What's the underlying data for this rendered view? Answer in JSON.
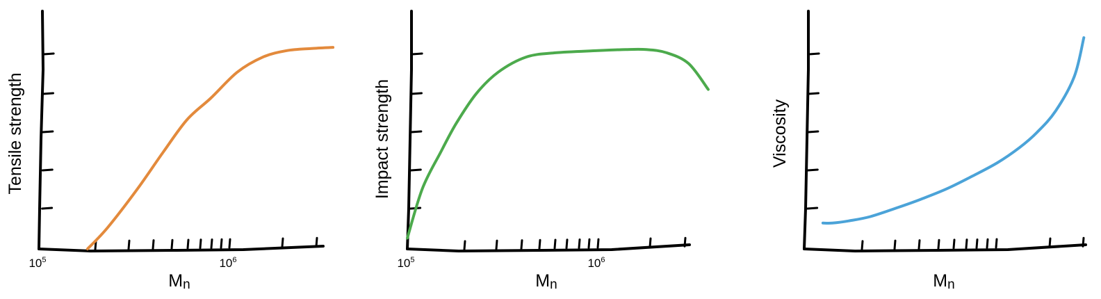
{
  "chart_data": [
    {
      "type": "line",
      "title": "",
      "xlabel": "Mn",
      "ylabel": "Tensile strength",
      "x_scale": "log",
      "xlim": [
        100000,
        3600000
      ],
      "x_tick_labels": [
        {
          "value": 100000,
          "base": "10",
          "exp": "5"
        },
        {
          "value": 1000000,
          "base": "10",
          "exp": "6"
        }
      ],
      "y_ticks": 5,
      "grid": false,
      "legend": "none",
      "series": [
        {
          "color": "#e38a3c",
          "x": [
            180000,
            230000,
            330000,
            450000,
            600000,
            800000,
            1100000,
            1500000,
            2000000,
            2700000,
            3500000
          ],
          "y": [
            0.0,
            0.1,
            0.28,
            0.45,
            0.6,
            0.7,
            0.82,
            0.89,
            0.92,
            0.93,
            0.935
          ]
        }
      ]
    },
    {
      "type": "line",
      "title": "",
      "xlabel": "Mn",
      "ylabel": "Impact strength",
      "x_scale": "log",
      "xlim": [
        100000,
        3600000
      ],
      "x_tick_labels": [
        {
          "value": 100000,
          "base": "10",
          "exp": "5"
        },
        {
          "value": 1000000,
          "base": "10",
          "exp": "6"
        }
      ],
      "y_ticks": 5,
      "grid": false,
      "legend": "none",
      "series": [
        {
          "color": "#4caa4c",
          "x": [
            100000,
            120000,
            150000,
            180000,
            230000,
            300000,
            420000,
            600000,
            1000000,
            1400000,
            1800000,
            2300000,
            3000000,
            3800000
          ],
          "y": [
            0.05,
            0.28,
            0.45,
            0.58,
            0.72,
            0.82,
            0.89,
            0.91,
            0.92,
            0.925,
            0.925,
            0.91,
            0.86,
            0.74
          ]
        }
      ]
    },
    {
      "type": "line",
      "title": "",
      "xlabel": "Mn",
      "ylabel": "Viscosity",
      "x_scale": "log",
      "xlim": [
        100000,
        3600000
      ],
      "x_tick_labels": [],
      "y_ticks": 5,
      "grid": false,
      "legend": "none",
      "series": [
        {
          "color": "#4ba3d8",
          "x": [
            125000,
            140000,
            170000,
            220000,
            300000,
            400000,
            550000,
            750000,
            1000000,
            1300000,
            1600000,
            2000000,
            2500000,
            2800000
          ],
          "y": [
            0.12,
            0.12,
            0.13,
            0.15,
            0.19,
            0.23,
            0.28,
            0.34,
            0.4,
            0.47,
            0.54,
            0.64,
            0.8,
            0.98
          ]
        }
      ]
    }
  ]
}
